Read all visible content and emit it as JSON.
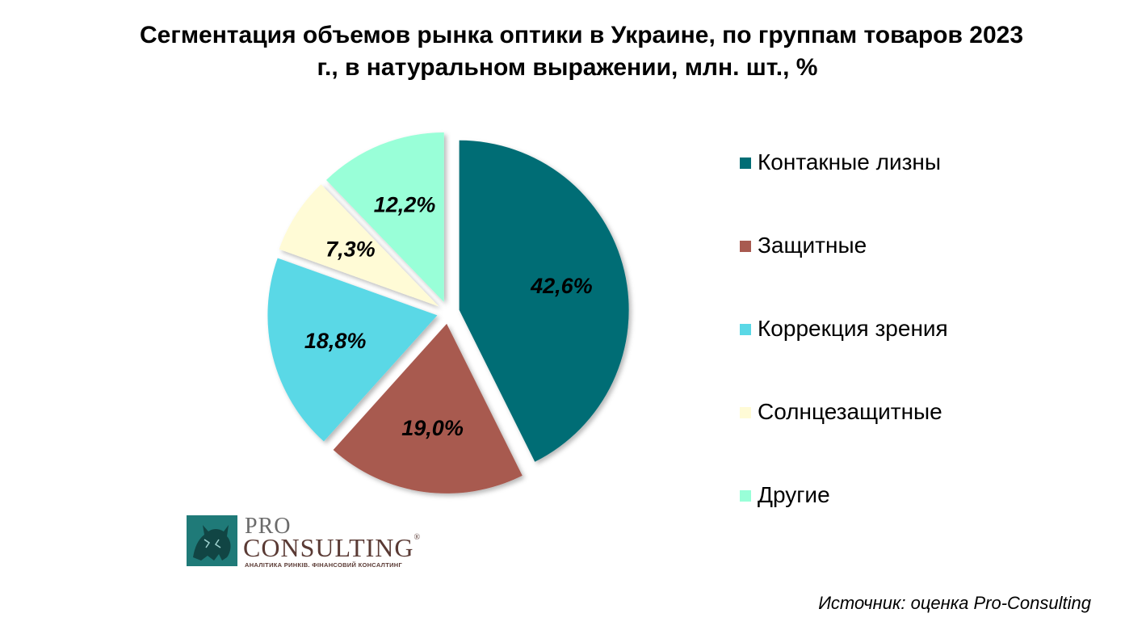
{
  "chart_data": {
    "type": "pie",
    "title_line1": "Сегментация объемов рынка оптики в Украине, по группам товаров 2023",
    "title_line2": "г., в натуральном выражении, млн. шт., %",
    "slices": [
      {
        "label": "Контакные лизны",
        "value": 42.6,
        "display": "42,6%",
        "color": "#006d75",
        "exploded": true
      },
      {
        "label": "Защитные",
        "value": 19.0,
        "display": "19,0%",
        "color": "#a85a50",
        "exploded": true
      },
      {
        "label": "Коррекция зрения",
        "value": 18.8,
        "display": "18,8%",
        "color": "#5ad8e6",
        "exploded": true
      },
      {
        "label": "Солнцезащитные",
        "value": 7.3,
        "display": "7,3%",
        "color": "#fffbd6",
        "exploded": true
      },
      {
        "label": "Другие",
        "value": 12.2,
        "display": "12,2%",
        "color": "#99ffd8",
        "exploded": true
      }
    ],
    "legend_position": "right"
  },
  "logo": {
    "pro": "PRO",
    "consulting": "CONSULTING",
    "registered": "®",
    "tagline": "АНАЛІТИКА РИНКІВ. ФІНАНСОВИЙ КОНСАЛТИНГ",
    "mark_color": "#1f7a78"
  },
  "source": "Источник: оценка Pro-Consulting"
}
